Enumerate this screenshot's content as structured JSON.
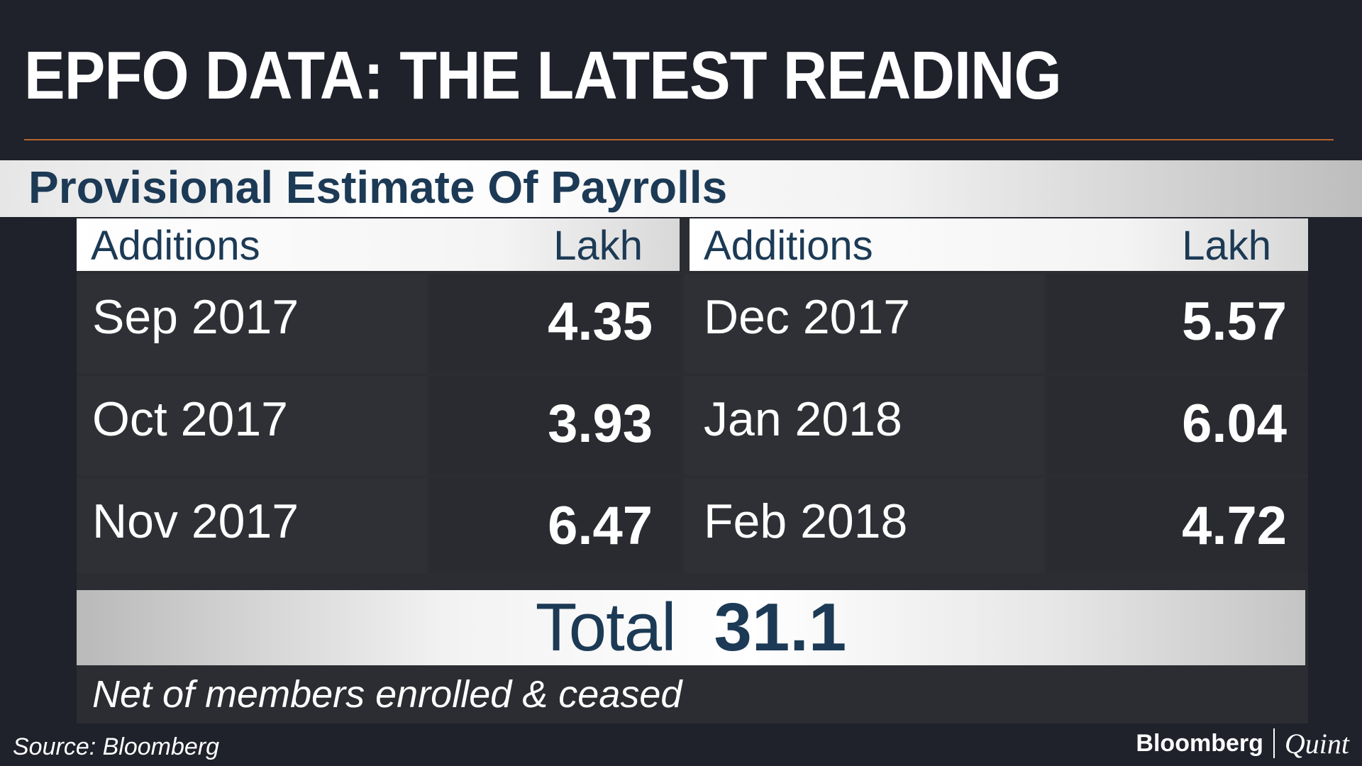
{
  "header": {
    "title": "EPFO DATA: THE LATEST READING",
    "subtitle": "Provisional Estimate Of Payrolls"
  },
  "colors": {
    "background": "#1f212b",
    "accent_rule": "#b5652e",
    "header_text": "#1c3a55",
    "cell_bg": "#2f3035"
  },
  "chart_data": {
    "type": "table",
    "columns": [
      {
        "label": "Additions",
        "unit_label": "Lakh"
      },
      {
        "label": "Additions",
        "unit_label": "Lakh"
      }
    ],
    "left_rows": [
      {
        "month": "Sep 2017",
        "value": "4.35"
      },
      {
        "month": "Oct 2017",
        "value": "3.93"
      },
      {
        "month": "Nov 2017",
        "value": "6.47"
      }
    ],
    "right_rows": [
      {
        "month": "Dec 2017",
        "value": "5.57"
      },
      {
        "month": "Jan 2018",
        "value": "6.04"
      },
      {
        "month": "Feb 2018",
        "value": "4.72"
      }
    ],
    "total_label": "Total",
    "total_value": "31.1",
    "note": "Net of members enrolled & ceased"
  },
  "footer": {
    "source": "Source: Bloomberg",
    "brand_primary": "Bloomberg",
    "brand_secondary": "Quint"
  }
}
